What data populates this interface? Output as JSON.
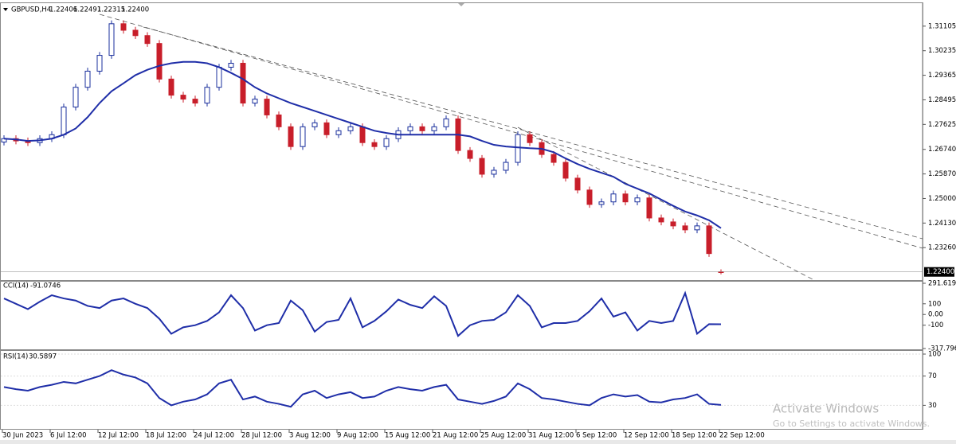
{
  "chart_data": {
    "type": "candlestick",
    "symbol": "GBPUSD,H4",
    "header_values": [
      "1.22406",
      "1.22491",
      "1.22315",
      "1.22400"
    ],
    "categories": [
      "30 Jun 2023",
      null,
      null,
      null,
      "6 Jul 12:00",
      null,
      null,
      null,
      "12 Jul 12:00",
      null,
      null,
      null,
      "18 Jul 12:00",
      null,
      null,
      null,
      "24 Jul 12:00",
      null,
      null,
      null,
      "28 Jul 12:00",
      null,
      null,
      null,
      "3 Aug 12:00",
      null,
      null,
      null,
      "9 Aug 12:00",
      null,
      null,
      null,
      "15 Aug 12:00",
      null,
      null,
      null,
      "21 Aug 12:00",
      null,
      null,
      null,
      "25 Aug 12:00",
      null,
      null,
      null,
      "31 Aug 12:00",
      null,
      null,
      null,
      "6 Sep 12:00",
      null,
      null,
      null,
      "12 Sep 12:00",
      null,
      null,
      null,
      "18 Sep 12:00",
      null,
      null,
      null,
      "22 Sep 12:00"
    ],
    "open": [
      1.27,
      1.2712,
      1.2704,
      1.2698,
      1.2712,
      1.2726,
      1.2824,
      1.2894,
      1.2951,
      1.3007,
      1.3119,
      1.3096,
      1.3077,
      1.3049,
      1.2923,
      1.2866,
      1.2852,
      1.2838,
      1.2894,
      1.2965,
      1.2979,
      1.2838,
      1.2852,
      1.2796,
      1.2754,
      1.2684,
      1.2754,
      1.2768,
      1.2726,
      1.274,
      1.2754,
      1.2698,
      1.2684,
      1.2712,
      1.274,
      1.2754,
      1.274,
      1.2754,
      1.2782,
      1.267,
      1.2642,
      1.2586,
      1.26,
      1.2628,
      1.2726,
      1.2698,
      1.2656,
      1.2628,
      1.2572,
      1.253,
      1.2479,
      1.2488,
      1.2516,
      1.2488,
      1.2502,
      1.2431,
      1.2417,
      1.2403,
      1.2389,
      1.2403,
      1.22406
    ],
    "high": [
      1.2724,
      1.2724,
      1.2716,
      1.2724,
      1.2738,
      1.2836,
      1.2906,
      1.2963,
      1.3019,
      1.3131,
      1.3131,
      1.3108,
      1.3089,
      1.3061,
      1.2935,
      1.2878,
      1.2864,
      1.2906,
      1.2977,
      1.2991,
      1.2991,
      1.2864,
      1.2864,
      1.2808,
      1.2766,
      1.2766,
      1.278,
      1.278,
      1.2752,
      1.2766,
      1.2766,
      1.271,
      1.2724,
      1.2752,
      1.2766,
      1.2766,
      1.2766,
      1.2794,
      1.2794,
      1.2682,
      1.2654,
      1.2612,
      1.264,
      1.2738,
      1.2738,
      1.271,
      1.2668,
      1.264,
      1.2584,
      1.2542,
      1.25,
      1.2528,
      1.2528,
      1.2514,
      1.2514,
      1.2443,
      1.2429,
      1.2415,
      1.2415,
      1.2415,
      1.22491
    ],
    "low": [
      1.2688,
      1.2692,
      1.2686,
      1.2686,
      1.27,
      1.2714,
      1.2812,
      1.2882,
      1.2939,
      1.2995,
      1.3084,
      1.3065,
      1.3037,
      1.2911,
      1.2854,
      1.284,
      1.2826,
      1.2826,
      1.2882,
      1.2953,
      1.2826,
      1.2826,
      1.2784,
      1.2742,
      1.2672,
      1.2672,
      1.2742,
      1.2714,
      1.2714,
      1.2728,
      1.2686,
      1.2672,
      1.2672,
      1.27,
      1.2728,
      1.2728,
      1.2728,
      1.2742,
      1.2658,
      1.263,
      1.2574,
      1.2574,
      1.2588,
      1.2616,
      1.2686,
      1.2644,
      1.2616,
      1.256,
      1.2518,
      1.2467,
      1.2467,
      1.2476,
      1.2476,
      1.2476,
      1.2419,
      1.2405,
      1.2391,
      1.2377,
      1.2377,
      1.2293,
      1.22315
    ],
    "close": [
      1.2712,
      1.2704,
      1.2698,
      1.2712,
      1.2726,
      1.2824,
      1.2894,
      1.2951,
      1.3007,
      1.3119,
      1.3096,
      1.3077,
      1.3049,
      1.2923,
      1.2866,
      1.2852,
      1.2838,
      1.2894,
      1.2965,
      1.2979,
      1.2838,
      1.2852,
      1.2796,
      1.2754,
      1.2684,
      1.2754,
      1.2768,
      1.2726,
      1.274,
      1.2754,
      1.2698,
      1.2684,
      1.2712,
      1.274,
      1.2754,
      1.274,
      1.2754,
      1.2782,
      1.267,
      1.2642,
      1.2586,
      1.26,
      1.2628,
      1.2726,
      1.2698,
      1.2656,
      1.2628,
      1.2572,
      1.253,
      1.2479,
      1.2488,
      1.2516,
      1.2488,
      1.2502,
      1.2431,
      1.2417,
      1.2403,
      1.2389,
      1.2403,
      1.2305,
      1.224
    ],
    "up_color": "#1a2f9c",
    "down_color": "#c81e2a",
    "ylim": [
      1.2211,
      1.3189
    ],
    "yticks": [
      1.31105,
      1.30235,
      1.29365,
      1.28495,
      1.27625,
      {
        "value": 1.2674,
        "label": "1.26740"
      },
      {
        "value": 1.2587,
        "label": "1.25870"
      },
      {
        "value": 1.25,
        "label": "1.25000"
      },
      {
        "value": 1.2413,
        "label": "1.24130"
      },
      {
        "value": 1.2326,
        "label": "1.23260"
      }
    ],
    "moving_average": {
      "color": "#1f2ea8",
      "values": [
        1.2712,
        1.2709,
        1.2704,
        1.2706,
        1.2712,
        1.2726,
        1.2748,
        1.2788,
        1.2838,
        1.288,
        1.2908,
        1.2937,
        1.2956,
        1.297,
        1.2979,
        1.2984,
        1.2984,
        1.2979,
        1.2965,
        1.2945,
        1.2923,
        1.2894,
        1.2872,
        1.2855,
        1.2838,
        1.2824,
        1.281,
        1.2796,
        1.2782,
        1.2768,
        1.2754,
        1.274,
        1.2732,
        1.2726,
        1.2726,
        1.2726,
        1.2726,
        1.2726,
        1.2726,
        1.272,
        1.2704,
        1.269,
        1.2684,
        1.2681,
        1.2678,
        1.2676,
        1.2664,
        1.2642,
        1.2622,
        1.2605,
        1.2591,
        1.2577,
        1.2552,
        1.2535,
        1.2518,
        1.2496,
        1.2474,
        1.2454,
        1.244,
        1.2423,
        1.2395
      ]
    },
    "indicators": [
      {
        "name": "CCI(14)",
        "color": "#1f2ea8",
        "ylim": [
          -317.7962,
          291.6191
        ],
        "yticks": [
          291.6191,
          100,
          {
            "value": 0,
            "label": "0.00"
          },
          -100,
          -317.7962
        ],
        "values": [
          150,
          100,
          50,
          120,
          180,
          150,
          130,
          80,
          60,
          130,
          150,
          100,
          60,
          -40,
          -180,
          -120,
          -100,
          -60,
          20,
          180,
          60,
          -150,
          -100,
          -80,
          130,
          40,
          -160,
          -70,
          -50,
          150,
          -120,
          -60,
          30,
          140,
          90,
          60,
          170,
          80,
          -200,
          -100,
          -60,
          -50,
          20,
          180,
          80,
          -120,
          -80,
          -80,
          -60,
          30,
          150,
          -20,
          20,
          -150,
          -60,
          -80,
          -60,
          200,
          -180,
          -90,
          -91.0746
        ]
      },
      {
        "name": "RSI(14)",
        "color": "#1f2ea8",
        "ylim": [
          0,
          100
        ],
        "yticks": [
          100,
          70,
          30
        ],
        "values": [
          55,
          52,
          50,
          55,
          58,
          62,
          60,
          65,
          70,
          78,
          72,
          68,
          60,
          40,
          30,
          35,
          38,
          45,
          60,
          65,
          38,
          42,
          35,
          32,
          28,
          45,
          50,
          40,
          45,
          48,
          40,
          42,
          50,
          55,
          52,
          50,
          55,
          58,
          38,
          35,
          32,
          36,
          42,
          60,
          52,
          40,
          38,
          35,
          32,
          30,
          40,
          45,
          42,
          44,
          35,
          34,
          38,
          40,
          45,
          32,
          30.5897
        ]
      }
    ],
    "watermark": {
      "title": "Activate Windows",
      "subtitle": "Go to Settings to activate Windows."
    }
  }
}
